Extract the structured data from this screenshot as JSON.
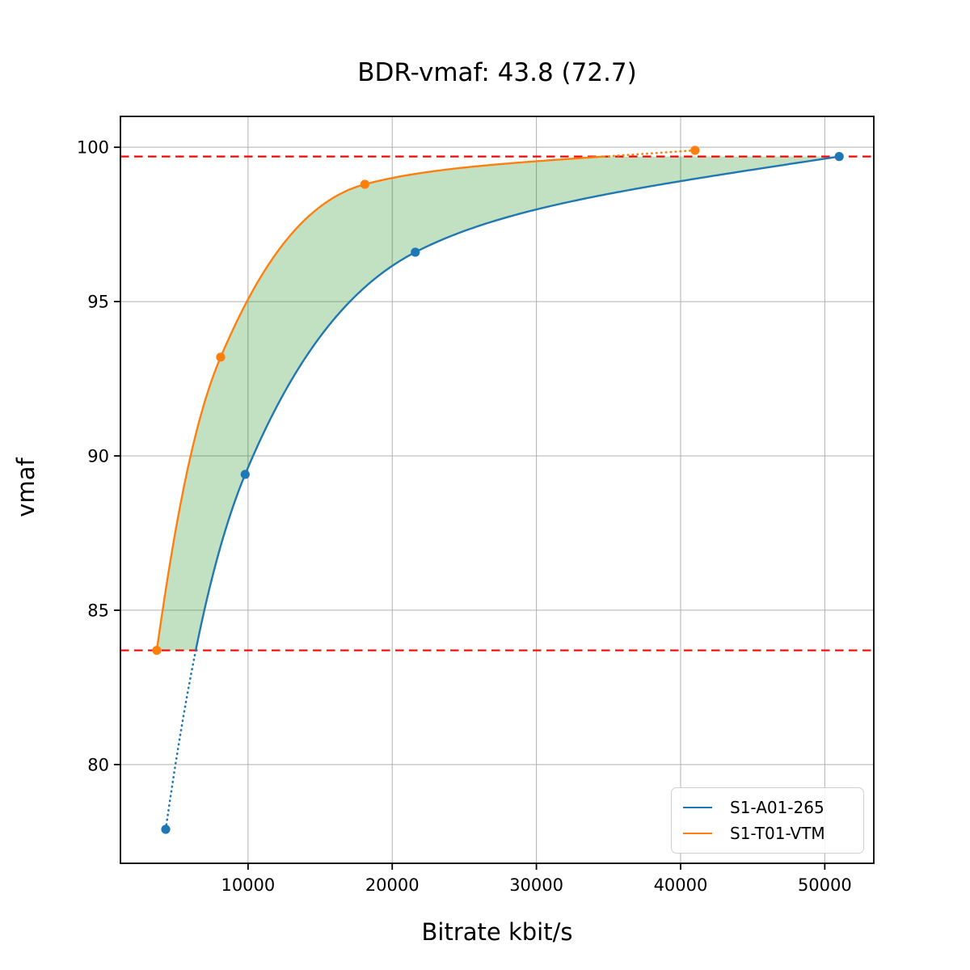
{
  "chart_data": {
    "type": "line",
    "title": "BDR-vmaf: 43.8 (72.7)",
    "xlabel": "Bitrate kbit/s",
    "ylabel": "vmaf",
    "xlim": [
      1150,
      53400
    ],
    "ylim": [
      76.8,
      101.0
    ],
    "xticks": [
      10000,
      20000,
      30000,
      40000,
      50000
    ],
    "yticks": [
      80,
      85,
      90,
      95,
      100
    ],
    "grid": true,
    "grid_color": "#b0b0b0",
    "legend_position": "lower right",
    "series": [
      {
        "name": "S1-A01-265",
        "color": "#1f77b4",
        "marker": "circle",
        "bitrate": [
          4290,
          9800,
          21600,
          51000
        ],
        "vmaf": [
          77.9,
          89.4,
          96.6,
          99.7
        ]
      },
      {
        "name": "S1-T01-VTM",
        "color": "#ff7f0e",
        "marker": "circle",
        "bitrate": [
          3670,
          8100,
          18100,
          41000
        ],
        "vmaf": [
          83.7,
          93.2,
          98.8,
          99.9
        ]
      }
    ],
    "reference_lines": {
      "color": "#ff0000",
      "style": "dashed",
      "upper_vmaf": 99.7,
      "lower_vmaf": 83.7
    },
    "shaded_region": {
      "fill_color": "#008000",
      "opacity": 0.24,
      "between": [
        "S1-T01-VTM",
        "S1-A01-265"
      ],
      "vmaf_interval": [
        83.7,
        99.7
      ]
    },
    "curve_style_note": "curve portions outside the vmaf overlap interval are drawn dotted"
  }
}
